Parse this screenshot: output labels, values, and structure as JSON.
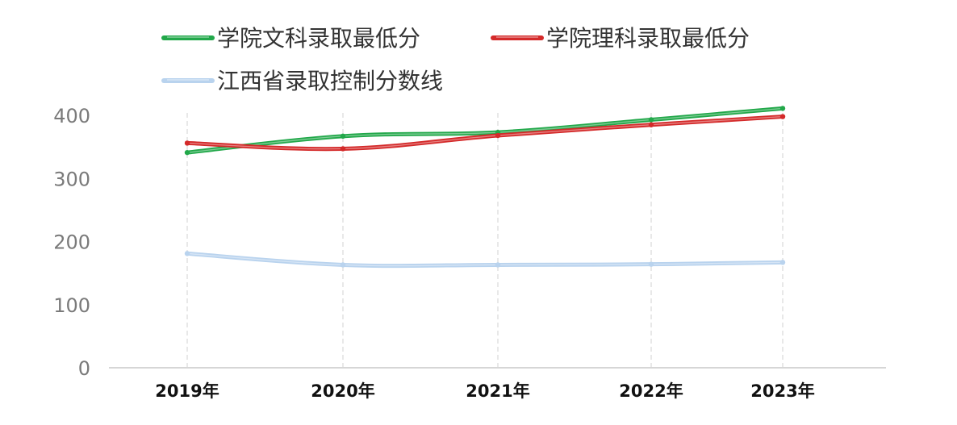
{
  "chart_data": {
    "type": "line",
    "categories": [
      "2019年",
      "2020年",
      "2021年",
      "2022年",
      "2023年"
    ],
    "series": [
      {
        "name": "学院文科录取最低分",
        "values": [
          341,
          367,
          373,
          393,
          411
        ],
        "color": "#22a84a"
      },
      {
        "name": "学院理科录取最低分",
        "values": [
          356,
          347,
          368,
          385,
          398
        ],
        "color": "#d42a2a"
      },
      {
        "name": "江西省录取控制分数线",
        "values": [
          181,
          163,
          163,
          164,
          167
        ],
        "color": "#b9d3ee"
      }
    ],
    "ylim": [
      0,
      400
    ],
    "yticks": [
      0,
      100,
      200,
      300,
      400
    ],
    "grid": "vertical dashed at categories",
    "legend_position": "top"
  }
}
